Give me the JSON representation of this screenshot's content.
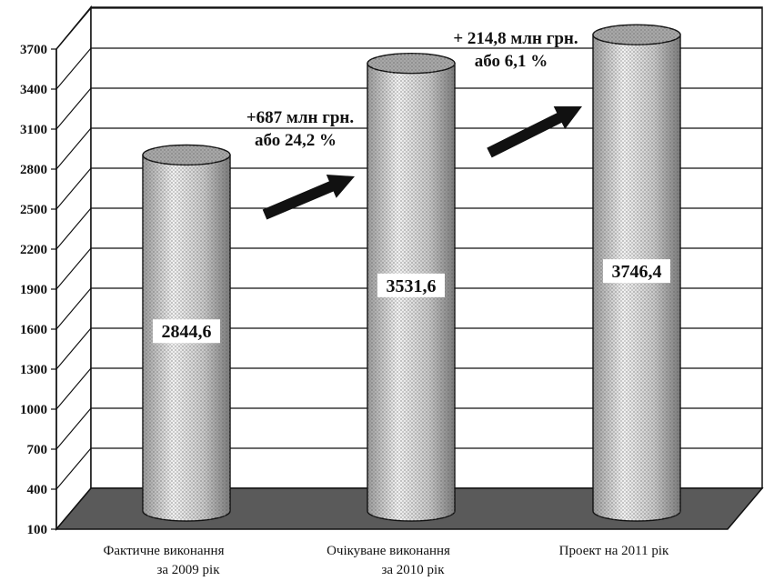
{
  "chart_data": {
    "type": "bar",
    "style": "3d-cylinder",
    "categories": [
      [
        "Фактичне виконання",
        "за 2009 рік"
      ],
      [
        "Очікуване виконання",
        "за 2010 рік"
      ],
      [
        "Проект на  2011 рік"
      ]
    ],
    "values": [
      2844.6,
      3531.6,
      3746.4
    ],
    "value_labels": [
      "2844,6",
      "3531,6",
      "3746,4"
    ],
    "yticks": [
      100,
      400,
      700,
      1000,
      1300,
      1600,
      1900,
      2200,
      2500,
      2800,
      3100,
      3400,
      3700
    ],
    "ylim": [
      100,
      3700
    ],
    "grid": true,
    "annotations": [
      {
        "lines": [
          "+687 млн грн.",
          "або  24,2 %"
        ],
        "between": [
          0,
          1
        ]
      },
      {
        "lines": [
          "+ 214,8 млн грн.",
          "або 6,1 %"
        ],
        "between": [
          1,
          2
        ]
      }
    ],
    "colors": {
      "grid": "#111111",
      "floor": "#5a5a5a",
      "arrow": "#111111",
      "bar_fill": "#d6d6d6"
    }
  }
}
